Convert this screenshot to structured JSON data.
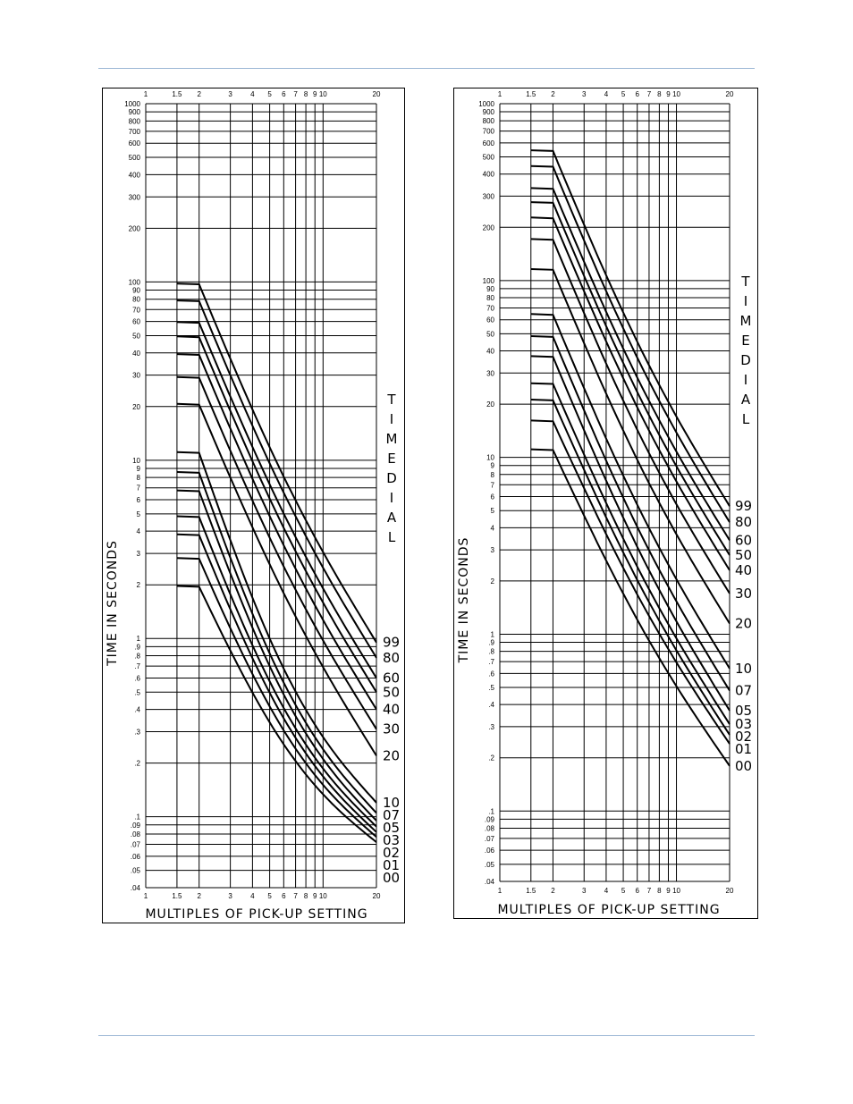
{
  "page": {
    "rule_color": "#9bb7d4"
  },
  "chart_data": [
    {
      "type": "line",
      "title": "",
      "xlabel": "MULTIPLES OF PICK-UP SETTING",
      "ylabel": "TIME IN SECONDS",
      "legend_title": "TIME DIAL",
      "x_scale": "log",
      "y_scale": "log",
      "xlim": [
        1,
        20
      ],
      "ylim": [
        0.04,
        1000
      ],
      "x_ticks": [
        {
          "v": 1,
          "label": "1"
        },
        {
          "v": 1.5,
          "label": "1.5"
        },
        {
          "v": 2,
          "label": "2"
        },
        {
          "v": 3,
          "label": "3"
        },
        {
          "v": 4,
          "label": "4"
        },
        {
          "v": 5,
          "label": "5"
        },
        {
          "v": 6,
          "label": "6"
        },
        {
          "v": 7,
          "label": "7"
        },
        {
          "v": 8,
          "label": "8"
        },
        {
          "v": 9,
          "label": "9"
        },
        {
          "v": 10,
          "label": "10"
        },
        {
          "v": 20,
          "label": "20"
        }
      ],
      "y_ticks": [
        {
          "v": 1000,
          "label": "1000"
        },
        {
          "v": 900,
          "label": "900"
        },
        {
          "v": 800,
          "label": "800"
        },
        {
          "v": 700,
          "label": "700"
        },
        {
          "v": 600,
          "label": "600"
        },
        {
          "v": 500,
          "label": "500"
        },
        {
          "v": 400,
          "label": "400"
        },
        {
          "v": 300,
          "label": "300"
        },
        {
          "v": 200,
          "label": "200"
        },
        {
          "v": 100,
          "label": "100"
        },
        {
          "v": 90,
          "label": "90"
        },
        {
          "v": 80,
          "label": "80"
        },
        {
          "v": 70,
          "label": "70"
        },
        {
          "v": 60,
          "label": "60"
        },
        {
          "v": 50,
          "label": "50"
        },
        {
          "v": 40,
          "label": "40"
        },
        {
          "v": 30,
          "label": "30"
        },
        {
          "v": 20,
          "label": "20"
        },
        {
          "v": 10,
          "label": "10"
        },
        {
          "v": 9,
          "label": "9"
        },
        {
          "v": 8,
          "label": "8"
        },
        {
          "v": 7,
          "label": "7"
        },
        {
          "v": 6,
          "label": "6"
        },
        {
          "v": 5,
          "label": "5"
        },
        {
          "v": 4,
          "label": "4"
        },
        {
          "v": 3,
          "label": "3"
        },
        {
          "v": 2,
          "label": "2"
        },
        {
          "v": 1,
          "label": "1"
        },
        {
          "v": 0.9,
          "label": ".9"
        },
        {
          "v": 0.8,
          "label": ".8"
        },
        {
          "v": 0.7,
          "label": ".7"
        },
        {
          "v": 0.6,
          "label": ".6"
        },
        {
          "v": 0.5,
          "label": ".5"
        },
        {
          "v": 0.4,
          "label": ".4"
        },
        {
          "v": 0.3,
          "label": ".3"
        },
        {
          "v": 0.2,
          "label": ".2"
        },
        {
          "v": 0.1,
          "label": ".1"
        },
        {
          "v": 0.09,
          "label": ".09"
        },
        {
          "v": 0.08,
          "label": ".08"
        },
        {
          "v": 0.07,
          "label": ".07"
        },
        {
          "v": 0.06,
          "label": ".06"
        },
        {
          "v": 0.05,
          "label": ".05"
        },
        {
          "v": 0.04,
          "label": ".04"
        }
      ],
      "series": [
        {
          "name": "99",
          "start": 97,
          "end": 0.95
        },
        {
          "name": "80",
          "start": 78,
          "end": 0.78
        },
        {
          "name": "60",
          "start": 59,
          "end": 0.6
        },
        {
          "name": "50",
          "start": 49,
          "end": 0.5
        },
        {
          "name": "40",
          "start": 39,
          "end": 0.4
        },
        {
          "name": "30",
          "start": 29,
          "end": 0.31
        },
        {
          "name": "20",
          "start": 20.5,
          "end": 0.22
        },
        {
          "name": "10",
          "start": 11,
          "end": 0.12
        },
        {
          "name": "07",
          "start": 8.5,
          "end": 0.105
        },
        {
          "name": "05",
          "start": 6.7,
          "end": 0.095
        },
        {
          "name": "03",
          "start": 4.8,
          "end": 0.088
        },
        {
          "name": "02",
          "start": 3.8,
          "end": 0.082
        },
        {
          "name": "01",
          "start": 2.8,
          "end": 0.077
        },
        {
          "name": "00",
          "start": 1.95,
          "end": 0.072
        }
      ]
    },
    {
      "type": "line",
      "title": "",
      "xlabel": "MULTIPLES OF PICK-UP SETTING",
      "ylabel": "TIME IN SECONDS",
      "legend_title": "TIME DIAL",
      "x_scale": "log",
      "y_scale": "log",
      "xlim": [
        1,
        20
      ],
      "ylim": [
        0.04,
        1000
      ],
      "x_ticks": [
        {
          "v": 1,
          "label": "1"
        },
        {
          "v": 1.5,
          "label": "1.5"
        },
        {
          "v": 2,
          "label": "2"
        },
        {
          "v": 3,
          "label": "3"
        },
        {
          "v": 4,
          "label": "4"
        },
        {
          "v": 5,
          "label": "5"
        },
        {
          "v": 6,
          "label": "6"
        },
        {
          "v": 7,
          "label": "7"
        },
        {
          "v": 8,
          "label": "8"
        },
        {
          "v": 9,
          "label": "9"
        },
        {
          "v": 10,
          "label": "10"
        },
        {
          "v": 20,
          "label": "20"
        }
      ],
      "y_ticks": [
        {
          "v": 1000,
          "label": "1000"
        },
        {
          "v": 900,
          "label": "900"
        },
        {
          "v": 800,
          "label": "800"
        },
        {
          "v": 700,
          "label": "700"
        },
        {
          "v": 600,
          "label": "600"
        },
        {
          "v": 500,
          "label": "500"
        },
        {
          "v": 400,
          "label": "400"
        },
        {
          "v": 300,
          "label": "300"
        },
        {
          "v": 200,
          "label": "200"
        },
        {
          "v": 100,
          "label": "100"
        },
        {
          "v": 90,
          "label": "90"
        },
        {
          "v": 80,
          "label": "80"
        },
        {
          "v": 70,
          "label": "70"
        },
        {
          "v": 60,
          "label": "60"
        },
        {
          "v": 50,
          "label": "50"
        },
        {
          "v": 40,
          "label": "40"
        },
        {
          "v": 30,
          "label": "30"
        },
        {
          "v": 20,
          "label": "20"
        },
        {
          "v": 10,
          "label": "10"
        },
        {
          "v": 9,
          "label": "9"
        },
        {
          "v": 8,
          "label": "8"
        },
        {
          "v": 7,
          "label": "7"
        },
        {
          "v": 6,
          "label": "6"
        },
        {
          "v": 5,
          "label": "5"
        },
        {
          "v": 4,
          "label": "4"
        },
        {
          "v": 3,
          "label": "3"
        },
        {
          "v": 2,
          "label": "2"
        },
        {
          "v": 1,
          "label": "1"
        },
        {
          "v": 0.9,
          "label": ".9"
        },
        {
          "v": 0.8,
          "label": ".8"
        },
        {
          "v": 0.7,
          "label": ".7"
        },
        {
          "v": 0.6,
          "label": ".6"
        },
        {
          "v": 0.5,
          "label": ".5"
        },
        {
          "v": 0.4,
          "label": ".4"
        },
        {
          "v": 0.3,
          "label": ".3"
        },
        {
          "v": 0.2,
          "label": ".2"
        },
        {
          "v": 0.1,
          "label": ".1"
        },
        {
          "v": 0.09,
          "label": ".09"
        },
        {
          "v": 0.08,
          "label": ".08"
        },
        {
          "v": 0.07,
          "label": ".07"
        },
        {
          "v": 0.06,
          "label": ".06"
        },
        {
          "v": 0.05,
          "label": ".05"
        },
        {
          "v": 0.04,
          "label": ".04"
        }
      ],
      "series": [
        {
          "name": "99",
          "start": 540,
          "end": 5.3
        },
        {
          "name": "80",
          "start": 440,
          "end": 4.3
        },
        {
          "name": "60",
          "start": 330,
          "end": 3.4
        },
        {
          "name": "50",
          "start": 275,
          "end": 2.8
        },
        {
          "name": "40",
          "start": 225,
          "end": 2.3
        },
        {
          "name": "30",
          "start": 170,
          "end": 1.7
        },
        {
          "name": "20",
          "start": 115,
          "end": 1.15
        },
        {
          "name": "10",
          "start": 64,
          "end": 0.64
        },
        {
          "name": "07",
          "start": 48,
          "end": 0.48
        },
        {
          "name": "05",
          "start": 37,
          "end": 0.37
        },
        {
          "name": "03",
          "start": 26,
          "end": 0.31
        },
        {
          "name": "02",
          "start": 21,
          "end": 0.27
        },
        {
          "name": "01",
          "start": 16,
          "end": 0.24
        },
        {
          "name": "00",
          "start": 11,
          "end": 0.18
        }
      ]
    }
  ]
}
